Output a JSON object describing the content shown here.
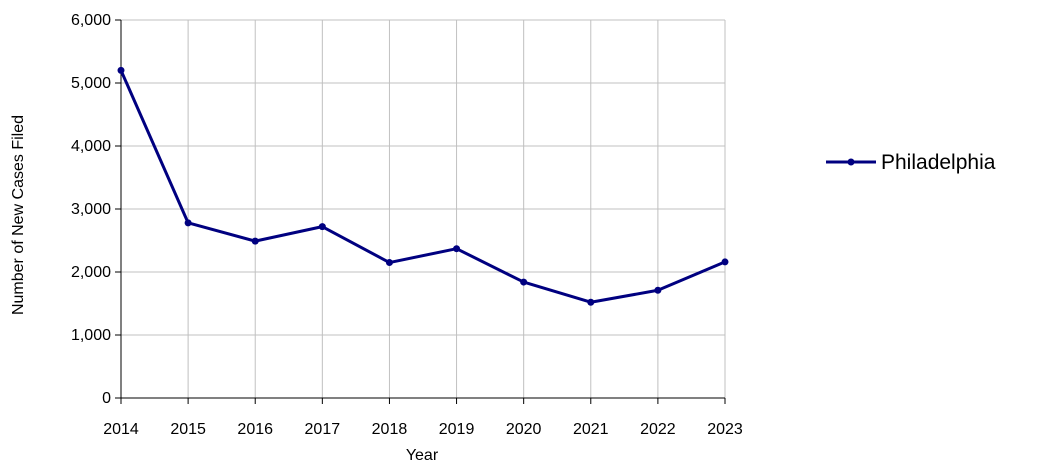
{
  "chart_data": {
    "type": "line",
    "title": "",
    "xlabel": "Year",
    "ylabel": "Number of New Cases Filed",
    "x": [
      "2014",
      "2015",
      "2016",
      "2017",
      "2018",
      "2019",
      "2020",
      "2021",
      "2022",
      "2023"
    ],
    "y_ticks": [
      "0",
      "1,000",
      "2,000",
      "3,000",
      "4,000",
      "5,000",
      "6,000"
    ],
    "ylim": [
      0,
      6000
    ],
    "grid": true,
    "legend_position": "right",
    "series": [
      {
        "name": "Philadelphia",
        "color": "#000080",
        "values": [
          5200,
          2780,
          2490,
          2720,
          2150,
          2370,
          1840,
          1520,
          1710,
          2160
        ]
      }
    ]
  }
}
